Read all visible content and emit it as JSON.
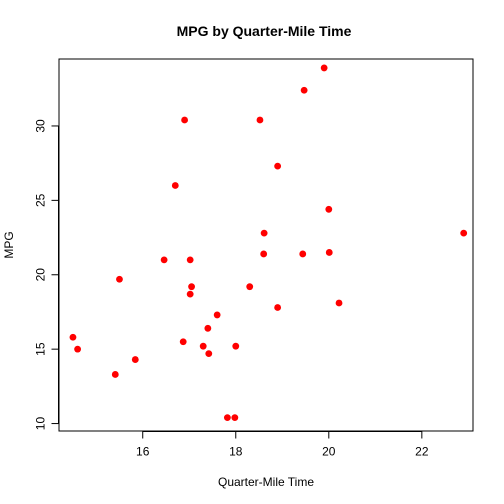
{
  "chart_data": {
    "type": "scatter",
    "title": "MPG by Quarter-Mile Time",
    "xlabel": "Quarter-Mile Time",
    "ylabel": "MPG",
    "xlim": [
      14.2,
      23.1
    ],
    "ylim": [
      9.5,
      34.5
    ],
    "xticks": [
      16,
      18,
      20,
      22
    ],
    "yticks": [
      10,
      15,
      20,
      25,
      30
    ],
    "grid": false,
    "point_color": "#ff0000",
    "points": [
      {
        "x": 16.46,
        "y": 21.0
      },
      {
        "x": 17.02,
        "y": 21.0
      },
      {
        "x": 18.61,
        "y": 22.8
      },
      {
        "x": 19.44,
        "y": 21.4
      },
      {
        "x": 17.02,
        "y": 18.7
      },
      {
        "x": 20.22,
        "y": 18.1
      },
      {
        "x": 15.84,
        "y": 14.3
      },
      {
        "x": 20.0,
        "y": 24.4
      },
      {
        "x": 22.9,
        "y": 22.8
      },
      {
        "x": 18.3,
        "y": 19.2
      },
      {
        "x": 18.9,
        "y": 17.8
      },
      {
        "x": 17.4,
        "y": 16.4
      },
      {
        "x": 17.6,
        "y": 17.3
      },
      {
        "x": 18.0,
        "y": 15.2
      },
      {
        "x": 17.98,
        "y": 10.4
      },
      {
        "x": 17.82,
        "y": 10.4
      },
      {
        "x": 17.42,
        "y": 14.7
      },
      {
        "x": 19.47,
        "y": 32.4
      },
      {
        "x": 18.52,
        "y": 30.4
      },
      {
        "x": 19.9,
        "y": 33.9
      },
      {
        "x": 20.01,
        "y": 21.5
      },
      {
        "x": 16.87,
        "y": 15.5
      },
      {
        "x": 17.3,
        "y": 15.2
      },
      {
        "x": 15.41,
        "y": 13.3
      },
      {
        "x": 17.05,
        "y": 19.2
      },
      {
        "x": 18.9,
        "y": 27.3
      },
      {
        "x": 16.7,
        "y": 26.0
      },
      {
        "x": 16.9,
        "y": 30.4
      },
      {
        "x": 14.5,
        "y": 15.8
      },
      {
        "x": 15.5,
        "y": 19.7
      },
      {
        "x": 14.6,
        "y": 15.0
      },
      {
        "x": 18.6,
        "y": 21.4
      }
    ]
  }
}
